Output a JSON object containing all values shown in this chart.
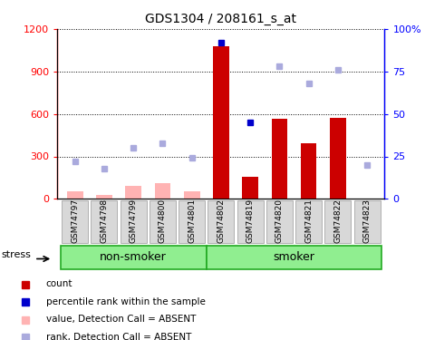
{
  "title": "GDS1304 / 208161_s_at",
  "samples": [
    "GSM74797",
    "GSM74798",
    "GSM74799",
    "GSM74800",
    "GSM74801",
    "GSM74802",
    "GSM74819",
    "GSM74820",
    "GSM74821",
    "GSM74822",
    "GSM74823"
  ],
  "count_values": [
    null,
    null,
    null,
    null,
    null,
    1075,
    155,
    565,
    390,
    575,
    null
  ],
  "count_absent": [
    55,
    30,
    95,
    110,
    55,
    null,
    null,
    null,
    null,
    null,
    null
  ],
  "rank_vals_pct": [
    null,
    null,
    null,
    null,
    null,
    92,
    45,
    null,
    null,
    null,
    null
  ],
  "rank_absent_pct": [
    22,
    18,
    30,
    33,
    24,
    null,
    null,
    78,
    68,
    76,
    20
  ],
  "ylim_left": [
    0,
    1200
  ],
  "ylim_right": [
    0,
    100
  ],
  "yticks_left": [
    0,
    300,
    600,
    900,
    1200
  ],
  "yticks_right": [
    0,
    25,
    50,
    75,
    100
  ],
  "ytick_labels_right": [
    "0",
    "25",
    "50",
    "75",
    "100%"
  ],
  "bar_color": "#cc0000",
  "bar_absent_color": "#ffb3b3",
  "rank_color": "#0000cc",
  "rank_absent_color": "#aaaadd",
  "group_bar_color": "#90ee90",
  "group_bar_edge": "#22aa22",
  "legend_items": [
    {
      "label": "count",
      "color": "#cc0000"
    },
    {
      "label": "percentile rank within the sample",
      "color": "#0000cc"
    },
    {
      "label": "value, Detection Call = ABSENT",
      "color": "#ffb3b3"
    },
    {
      "label": "rank, Detection Call = ABSENT",
      "color": "#aaaadd"
    }
  ],
  "stress_label": "stress",
  "group_labels": [
    "non-smoker",
    "smoker"
  ],
  "nonsmoker_count": 5,
  "smoker_count": 6
}
